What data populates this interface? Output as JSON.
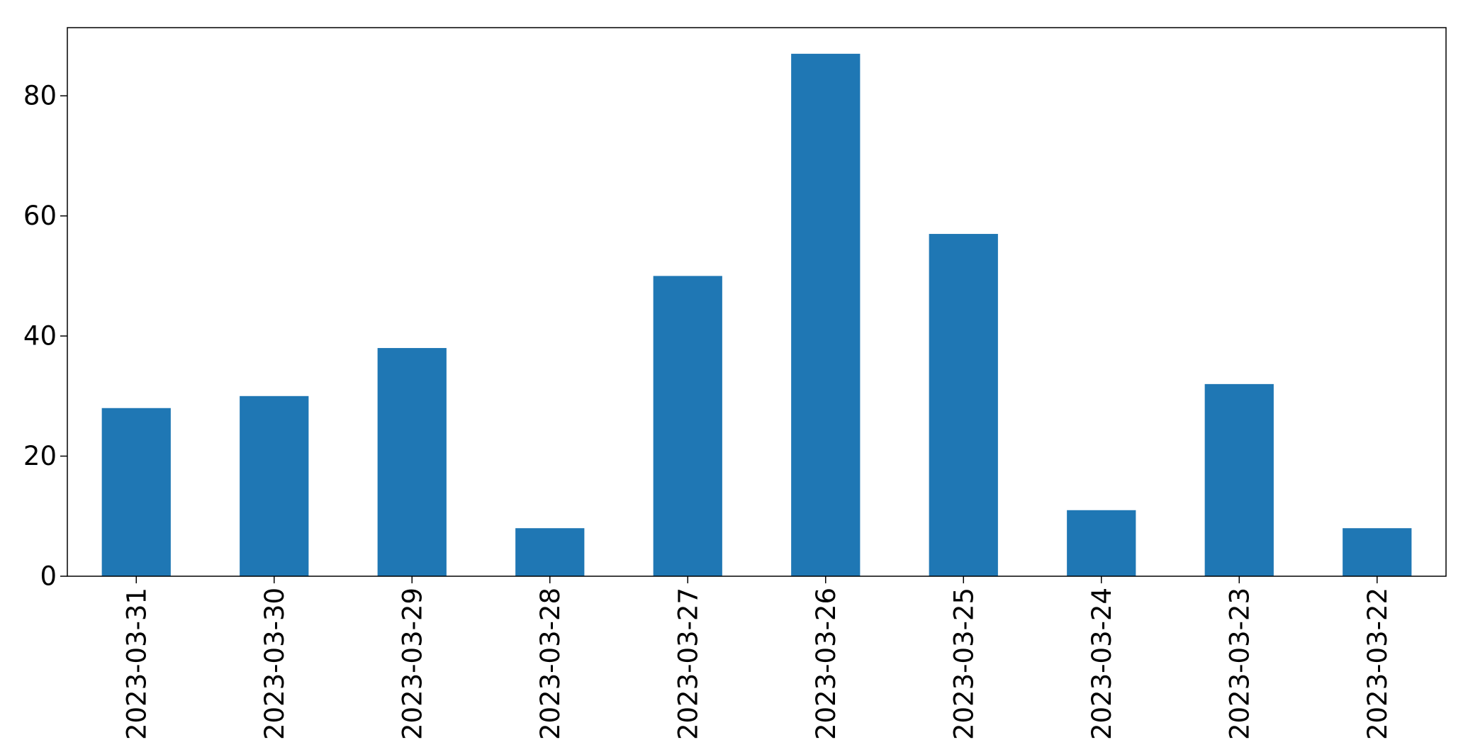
{
  "chart_data": {
    "type": "bar",
    "title": "",
    "xlabel": "",
    "ylabel": "",
    "categories": [
      "2023-03-31",
      "2023-03-30",
      "2023-03-29",
      "2023-03-28",
      "2023-03-27",
      "2023-03-26",
      "2023-03-25",
      "2023-03-24",
      "2023-03-23",
      "2023-03-22"
    ],
    "values": [
      28,
      30,
      38,
      8,
      50,
      87,
      57,
      11,
      32,
      8
    ],
    "ylim": [
      0,
      91.35
    ],
    "yticks": [
      0,
      20,
      40,
      60,
      80
    ],
    "ytick_labels": [
      "0",
      "20",
      "40",
      "60",
      "80"
    ],
    "bar_color": "#1f77b4",
    "grid": false,
    "legend": "none"
  }
}
